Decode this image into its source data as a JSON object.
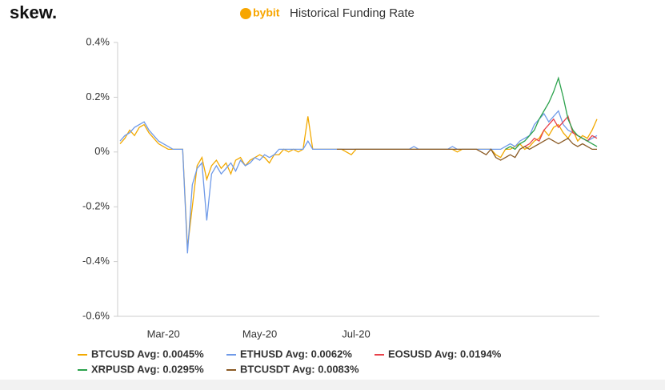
{
  "brand": "skew.",
  "logo": "bybit",
  "chart_data": {
    "type": "line",
    "title": "Historical Funding Rate",
    "categories": [
      null,
      null,
      null,
      null,
      null,
      null,
      null,
      null,
      null,
      "Mar-20",
      null,
      null,
      null,
      null,
      null,
      null,
      null,
      null,
      null,
      null,
      null,
      null,
      null,
      null,
      null,
      null,
      null,
      null,
      null,
      "May-20",
      null,
      null,
      null,
      null,
      null,
      null,
      null,
      null,
      null,
      null,
      null,
      null,
      null,
      null,
      null,
      null,
      null,
      null,
      null,
      "Jul-20",
      null,
      null,
      null,
      null,
      null,
      null,
      null,
      null,
      null,
      null,
      null,
      null,
      null,
      null,
      null,
      null,
      null,
      null,
      null,
      null,
      null,
      null,
      null,
      null,
      null,
      null,
      null,
      null,
      null,
      null,
      null,
      null,
      null,
      null,
      null,
      null,
      null,
      null,
      null,
      null,
      null,
      null,
      null,
      null,
      null,
      null,
      null,
      null,
      null,
      null
    ],
    "ylim": [
      -0.6,
      0.4
    ],
    "yticks": [
      {
        "value": -0.6,
        "label": "-0.6%"
      },
      {
        "value": -0.4,
        "label": "-0.4%"
      },
      {
        "value": -0.2,
        "label": "-0.2%"
      },
      {
        "value": 0,
        "label": "0%"
      },
      {
        "value": 0.2,
        "label": "0.2%"
      },
      {
        "value": 0.4,
        "label": "0.4%"
      }
    ],
    "series": [
      {
        "name": "BTCUSD Avg: 0.0045%",
        "color": "#f2a900",
        "values": [
          0.03,
          0.05,
          0.08,
          0.06,
          0.09,
          0.1,
          0.07,
          0.05,
          0.03,
          0.02,
          0.01,
          0.01,
          0.01,
          0.01,
          -0.35,
          -0.2,
          -0.05,
          -0.02,
          -0.1,
          -0.05,
          -0.03,
          -0.06,
          -0.04,
          -0.08,
          -0.03,
          -0.02,
          -0.05,
          -0.03,
          -0.02,
          -0.01,
          -0.02,
          -0.04,
          -0.01,
          -0.01,
          0.01,
          0,
          0.01,
          0,
          0.01,
          0.13,
          0.01,
          0.01,
          0.01,
          0.01,
          0.01,
          0.01,
          0.01,
          0,
          -0.01,
          0.01,
          0.01,
          0.01,
          0.01,
          0.01,
          0.01,
          0.01,
          0.01,
          0.01,
          0.01,
          0.01,
          0.01,
          0.01,
          0.01,
          0.01,
          0.01,
          0.01,
          0.01,
          0.01,
          0.01,
          0.01,
          0,
          0.01,
          0.01,
          0.01,
          0.01,
          0.01,
          0.01,
          0.01,
          -0.01,
          -0.02,
          0.01,
          0.01,
          0.02,
          0.03,
          0.01,
          0.02,
          0.04,
          0.05,
          0.08,
          0.06,
          0.09,
          0.1,
          0.07,
          0.05,
          0.08,
          0.04,
          0.06,
          0.05,
          0.08,
          0.12
        ]
      },
      {
        "name": "ETHUSD Avg: 0.0062%",
        "color": "#6f9ae8",
        "values": [
          0.04,
          0.06,
          0.07,
          0.09,
          0.1,
          0.11,
          0.08,
          0.06,
          0.04,
          0.03,
          0.02,
          0.01,
          0.01,
          0.01,
          -0.37,
          -0.12,
          -0.06,
          -0.04,
          -0.25,
          -0.08,
          -0.05,
          -0.08,
          -0.06,
          -0.04,
          -0.07,
          -0.03,
          -0.05,
          -0.04,
          -0.02,
          -0.03,
          -0.01,
          -0.02,
          -0.01,
          0.01,
          0.01,
          0.01,
          0.01,
          0.01,
          0.01,
          0.04,
          0.01,
          0.01,
          0.01,
          0.01,
          0.01,
          0.01,
          0.01,
          0.01,
          0.01,
          0.01,
          0.01,
          0.01,
          0.01,
          0.01,
          0.01,
          0.01,
          0.01,
          0.01,
          0.01,
          0.01,
          0.01,
          0.02,
          0.01,
          0.01,
          0.01,
          0.01,
          0.01,
          0.01,
          0.01,
          0.02,
          0.01,
          0.01,
          0.01,
          0.01,
          0.01,
          0.01,
          0.01,
          0.01,
          0.01,
          0.01,
          0.02,
          0.03,
          0.02,
          0.04,
          0.05,
          0.06,
          0.1,
          0.12,
          0.14,
          0.11,
          0.13,
          0.15,
          0.1,
          0.08,
          0.07,
          0.06,
          0.05,
          0.04,
          0.05,
          0.06
        ]
      },
      {
        "name": "EOSUSD Avg: 0.0194%",
        "color": "#e8414a",
        "values": [
          null,
          null,
          null,
          null,
          null,
          null,
          null,
          null,
          null,
          null,
          null,
          null,
          null,
          null,
          null,
          null,
          null,
          null,
          null,
          null,
          null,
          null,
          null,
          null,
          null,
          null,
          null,
          null,
          null,
          null,
          null,
          null,
          null,
          null,
          null,
          null,
          null,
          null,
          null,
          null,
          null,
          null,
          null,
          null,
          null,
          null,
          null,
          null,
          null,
          null,
          null,
          null,
          null,
          null,
          null,
          null,
          null,
          null,
          null,
          null,
          null,
          null,
          null,
          null,
          null,
          null,
          null,
          null,
          null,
          null,
          null,
          null,
          null,
          null,
          null,
          null,
          null,
          null,
          null,
          null,
          null,
          null,
          null,
          null,
          0.02,
          0.03,
          0.05,
          0.04,
          0.08,
          0.1,
          0.12,
          0.09,
          0.11,
          0.13,
          0.07,
          0.06,
          0.05,
          0.04,
          0.06,
          0.05
        ]
      },
      {
        "name": "XRPUSD Avg: 0.0295%",
        "color": "#2ba24c",
        "values": [
          null,
          null,
          null,
          null,
          null,
          null,
          null,
          null,
          null,
          null,
          null,
          null,
          null,
          null,
          null,
          null,
          null,
          null,
          null,
          null,
          null,
          null,
          null,
          null,
          null,
          null,
          null,
          null,
          null,
          null,
          null,
          null,
          null,
          null,
          null,
          null,
          null,
          null,
          null,
          null,
          null,
          null,
          null,
          null,
          null,
          null,
          null,
          null,
          null,
          null,
          null,
          null,
          null,
          null,
          null,
          null,
          null,
          null,
          null,
          null,
          null,
          null,
          null,
          null,
          null,
          null,
          null,
          null,
          null,
          null,
          null,
          null,
          null,
          null,
          null,
          null,
          null,
          null,
          null,
          null,
          0.01,
          0.02,
          0.01,
          0.03,
          0.04,
          0.06,
          0.08,
          0.12,
          0.15,
          0.18,
          0.22,
          0.27,
          0.2,
          0.12,
          0.08,
          0.06,
          0.05,
          0.04,
          0.03,
          0.02
        ]
      },
      {
        "name": "BTCUSDT Avg: 0.0083%",
        "color": "#8a5a24",
        "values": [
          null,
          null,
          null,
          null,
          null,
          null,
          null,
          null,
          null,
          null,
          null,
          null,
          null,
          null,
          null,
          null,
          null,
          null,
          null,
          null,
          null,
          null,
          null,
          null,
          null,
          null,
          null,
          null,
          null,
          null,
          null,
          null,
          null,
          null,
          null,
          null,
          null,
          null,
          null,
          null,
          null,
          null,
          null,
          null,
          null,
          0.01,
          0.01,
          0.01,
          0.01,
          0.01,
          0.01,
          0.01,
          0.01,
          0.01,
          0.01,
          0.01,
          0.01,
          0.01,
          0.01,
          0.01,
          0.01,
          0.01,
          0.01,
          0.01,
          0.01,
          0.01,
          0.01,
          0.01,
          0.01,
          0.01,
          0.01,
          0.01,
          0.01,
          0.01,
          0.01,
          0,
          -0.01,
          0.01,
          -0.02,
          -0.03,
          -0.02,
          -0.01,
          -0.02,
          0.01,
          0.02,
          0.01,
          0.02,
          0.03,
          0.04,
          0.05,
          0.04,
          0.03,
          0.04,
          0.05,
          0.03,
          0.02,
          0.03,
          0.02,
          0.01,
          0.01
        ]
      }
    ]
  }
}
